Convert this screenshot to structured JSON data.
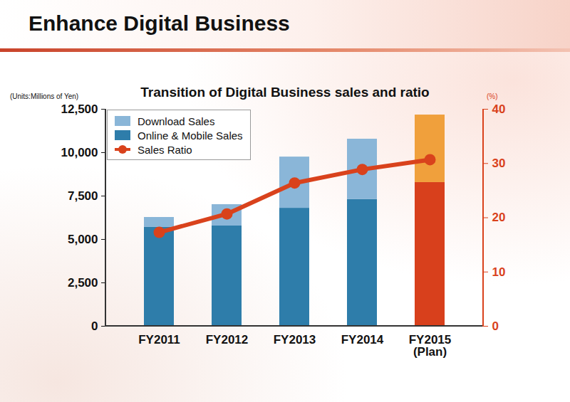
{
  "header": {
    "title": "Enhance Digital Business"
  },
  "chart_data": {
    "type": "bar",
    "title": "Transition of Digital Business sales and ratio",
    "y_label": "(Units:Millions of Yen)",
    "y2_label": "(%)",
    "stacked": true,
    "legend": "top-left",
    "grid": false,
    "categories": [
      "FY2011",
      "FY2012",
      "FY2013",
      "FY2014",
      "FY2015\n(Plan)"
    ],
    "series": [
      {
        "name": "Online & Mobile Sales",
        "type": "bar",
        "colors": [
          "#2e7daa",
          "#2e7daa",
          "#2e7daa",
          "#2e7daa",
          "#d8401c"
        ],
        "values": [
          5700,
          5780,
          6800,
          7300,
          8280
        ]
      },
      {
        "name": "Download Sales",
        "type": "bar",
        "colors": [
          "#8ab6d8",
          "#8ab6d8",
          "#8ab6d8",
          "#8ab6d8",
          "#f0a03c"
        ],
        "values": [
          570,
          1230,
          2950,
          3480,
          3890
        ]
      },
      {
        "name": "Sales Ratio",
        "type": "line",
        "axis": "y2",
        "marker": "circle",
        "color": "#d9421c",
        "values": [
          17.3,
          20.7,
          26.4,
          28.9,
          30.7
        ]
      }
    ],
    "ylim": [
      0,
      12500
    ],
    "yticks": [
      0,
      {
        "value": 2500,
        "label": "2,500"
      },
      {
        "value": 5000,
        "label": "5,000"
      },
      {
        "value": 7500,
        "label": "7,500"
      },
      {
        "value": 10000,
        "label": "10,000"
      },
      {
        "value": 12500,
        "label": "12,500"
      }
    ],
    "y2lim": [
      0,
      40
    ],
    "y2ticks": [
      0,
      10,
      20,
      30,
      40
    ]
  }
}
